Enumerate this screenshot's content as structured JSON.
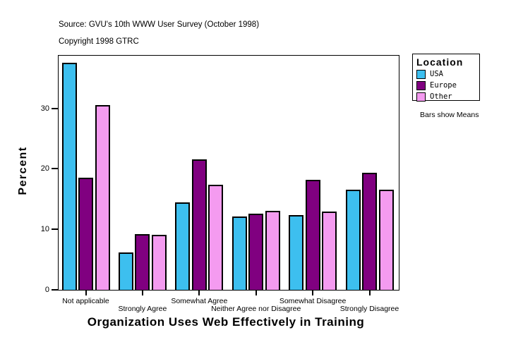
{
  "header": {
    "source": "Source: GVU's 10th WWW User Survey (October 1998)",
    "copyright": "Copyright 1998 GTRC"
  },
  "chart_data": {
    "type": "bar",
    "title": "Organization Uses Web Effectively in Training",
    "ylabel": "Percent",
    "ylim": [
      0,
      38.8
    ],
    "yticks": [
      0,
      10,
      20,
      30
    ],
    "grid": false,
    "categories": [
      "Not applicable",
      "Strongly Agree",
      "Somewhat Agree",
      "Neither Agree nor Disagree",
      "Somewhat Disagree",
      "Strongly Disagree"
    ],
    "series": [
      {
        "name": "USA",
        "color": "#3DBFEF",
        "values": [
          37.5,
          6.2,
          14.5,
          12.1,
          12.4,
          16.6
        ]
      },
      {
        "name": "Europe",
        "color": "#800080",
        "values": [
          18.5,
          9.2,
          21.6,
          12.6,
          18.2,
          19.4
        ]
      },
      {
        "name": "Other",
        "color": "#F49BF0",
        "values": [
          30.5,
          9.1,
          17.4,
          13.0,
          12.9,
          16.5
        ]
      }
    ],
    "legend": {
      "title": "Location",
      "position": "right",
      "note": "Bars show Means"
    }
  }
}
